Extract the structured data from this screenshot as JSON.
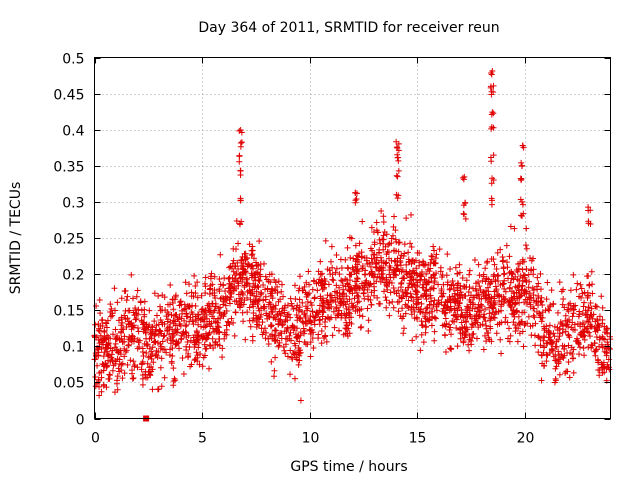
{
  "chart_data": {
    "type": "scatter",
    "title": "Day 364 of 2011, SRMTID for receiver reun",
    "xlabel": "GPS time / hours",
    "ylabel": "SRMTID / TECUs",
    "xlim": [
      0,
      24
    ],
    "ylim": [
      0,
      0.5
    ],
    "x_ticks": [
      0,
      5,
      10,
      15,
      20
    ],
    "y_ticks": [
      0,
      0.05,
      0.1,
      0.15,
      0.2,
      0.25,
      0.3,
      0.35,
      0.4,
      0.45,
      0.5
    ],
    "x_tick_labels": [
      "0",
      "5",
      "10",
      "15",
      "20"
    ],
    "y_tick_labels": [
      "0",
      "0.05",
      "0.1",
      "0.15",
      "0.2",
      "0.25",
      "0.3",
      "0.35",
      "0.4",
      "0.45",
      "0.5"
    ],
    "grid": true,
    "marker": "+",
    "color": "#e00000",
    "series": [
      {
        "name": "SRMTID",
        "profile_x": [
          0,
          0.5,
          1,
          1.5,
          2,
          2.5,
          3,
          3.5,
          4,
          4.5,
          5,
          5.5,
          6,
          6.5,
          7,
          7.5,
          8,
          8.5,
          9,
          9.5,
          10,
          10.5,
          11,
          11.5,
          12,
          12.5,
          13,
          13.5,
          14,
          14.5,
          15,
          15.5,
          16,
          16.5,
          17,
          17.5,
          18,
          18.5,
          19,
          19.5,
          20,
          20.5,
          21,
          21.5,
          22,
          22.5,
          23,
          23.5,
          24
        ],
        "profile_mean": [
          0.09,
          0.09,
          0.1,
          0.12,
          0.12,
          0.1,
          0.11,
          0.12,
          0.13,
          0.13,
          0.12,
          0.14,
          0.15,
          0.18,
          0.2,
          0.18,
          0.16,
          0.14,
          0.13,
          0.12,
          0.15,
          0.16,
          0.17,
          0.16,
          0.18,
          0.19,
          0.2,
          0.22,
          0.21,
          0.19,
          0.18,
          0.17,
          0.17,
          0.16,
          0.16,
          0.15,
          0.16,
          0.17,
          0.18,
          0.17,
          0.18,
          0.16,
          0.12,
          0.1,
          0.12,
          0.14,
          0.15,
          0.1,
          0.09
        ],
        "spread": 0.05,
        "point_count": 2600,
        "peaks": [
          {
            "x": 6.8,
            "values": [
              0.4,
              0.38,
              0.36,
              0.34,
              0.3,
              0.27
            ]
          },
          {
            "x": 14.1,
            "values": [
              0.38,
              0.37,
              0.36,
              0.34,
              0.31
            ]
          },
          {
            "x": 17.2,
            "values": [
              0.33,
              0.3,
              0.28
            ]
          },
          {
            "x": 18.5,
            "values": [
              0.48,
              0.46,
              0.45,
              0.42,
              0.4,
              0.36,
              0.33,
              0.3
            ]
          },
          {
            "x": 19.9,
            "values": [
              0.38,
              0.35,
              0.33,
              0.3,
              0.28
            ]
          },
          {
            "x": 12.2,
            "values": [
              0.31,
              0.3
            ]
          },
          {
            "x": 23.0,
            "values": [
              0.29,
              0.27
            ]
          }
        ],
        "outliers": [
          {
            "x": 9.6,
            "y": 0.025
          },
          {
            "x": 2.4,
            "y": 0.0
          }
        ]
      }
    ]
  }
}
